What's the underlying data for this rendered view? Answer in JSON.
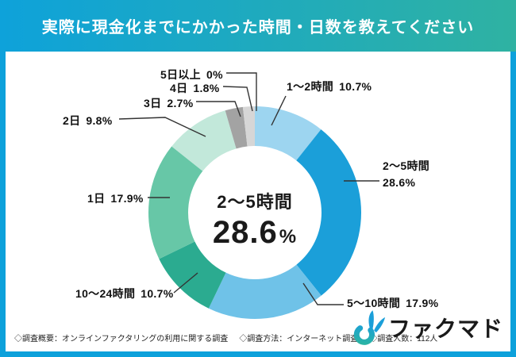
{
  "header": {
    "title": "実際に現金化までにかかった時間・日数を教えてください"
  },
  "chart_data": {
    "type": "pie",
    "variant": "donut",
    "title": "実際に現金化までにかかった時間・日数を教えてください",
    "start_angle": "top",
    "direction": "clockwise",
    "inner_radius_ratio": 0.63,
    "segments": [
      {
        "label": "1〜2時間",
        "value": 10.7,
        "pct": "10.7%",
        "color": "#9DD5F0"
      },
      {
        "label": "2〜5時間",
        "value": 28.6,
        "pct": "28.6%",
        "color": "#1B9FD9"
      },
      {
        "label": "5〜10時間",
        "value": 17.9,
        "pct": "17.9%",
        "color": "#6FC2E8"
      },
      {
        "label": "10〜24時間",
        "value": 10.7,
        "pct": "10.7%",
        "color": "#2BAB90"
      },
      {
        "label": "1日",
        "value": 17.9,
        "pct": "17.9%",
        "color": "#67C7A7"
      },
      {
        "label": "2日",
        "value": 9.8,
        "pct": "9.8%",
        "color": "#C2E8DA"
      },
      {
        "label": "3日",
        "value": 2.7,
        "pct": "2.7%",
        "color": "#A3A3A3"
      },
      {
        "label": "4日",
        "value": 1.8,
        "pct": "1.8%",
        "color": "#D6D6D6"
      },
      {
        "label": "5日以上",
        "value": 0,
        "pct": "0%",
        "color": "#EDEDED"
      }
    ],
    "center_label": "2〜5時間",
    "center_value": "28.6",
    "center_unit": "%"
  },
  "footer": {
    "notes": [
      "◇調査概要：オンラインファクタリングの利用に関する調査",
      "◇調査方法：インターネット調査",
      "◇調査人数：112人"
    ],
    "logo_text": "ファクマド"
  },
  "colors": {
    "header_gradient_start": "#0EA2DA",
    "header_gradient_end": "#2FB2A2",
    "frame_border": "#0DA1DB",
    "leader_line": "#333333"
  }
}
